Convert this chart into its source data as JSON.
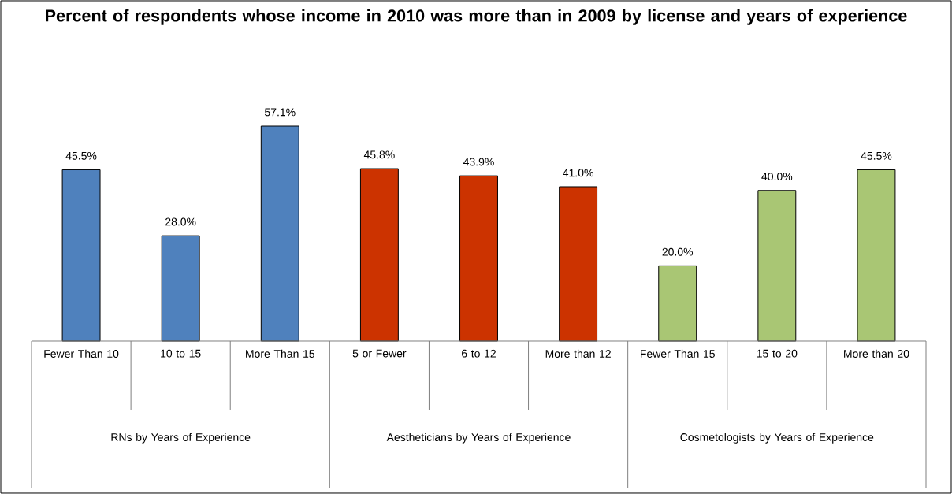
{
  "chart_data": {
    "type": "bar",
    "title": "Percent of respondents whose income in 2010 was more than in 2009 by license and years of experience",
    "categories": [
      "Fewer Than 10",
      "10 to 15",
      "More Than 15",
      "5 or Fewer",
      "6 to 12",
      "More than 12",
      "Fewer Than 15",
      "15 to 20",
      "More than 20"
    ],
    "values": [
      45.5,
      28.0,
      57.1,
      45.8,
      43.9,
      41.0,
      20.0,
      40.0,
      45.5
    ],
    "value_labels": [
      "45.5%",
      "28.0%",
      "57.1%",
      "45.8%",
      "43.9%",
      "41.0%",
      "20.0%",
      "40.0%",
      "45.5%"
    ],
    "colors": [
      "#4f81bd",
      "#4f81bd",
      "#4f81bd",
      "#cc3300",
      "#cc3300",
      "#cc3300",
      "#a9c674",
      "#a9c674",
      "#a9c674"
    ],
    "annotations": [
      "RNs by Years of Experience",
      "Aestheticians by Years of Experience",
      "Cosmetologists by Years of Experience"
    ]
  }
}
